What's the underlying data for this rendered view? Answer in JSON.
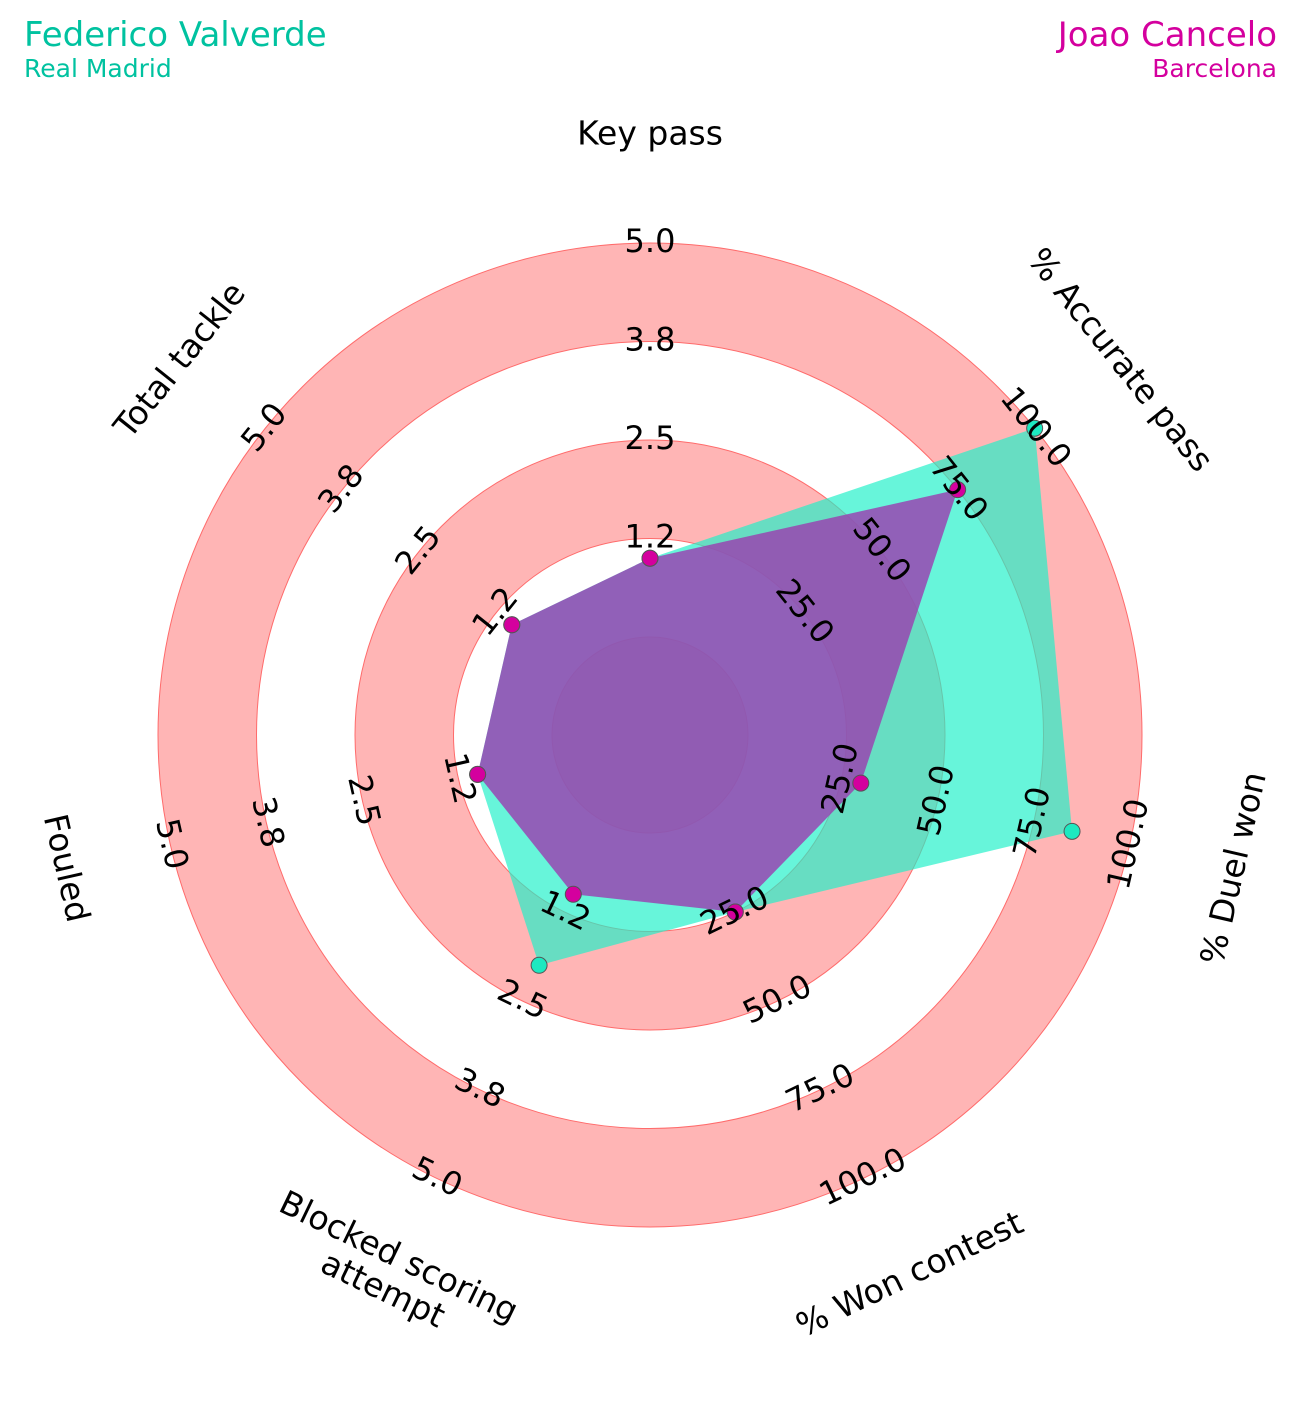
{
  "players": [
    {
      "name": "Federico Valverde",
      "team": "Real Madrid",
      "color": "#00c2a0",
      "fill": "#1ff0c8",
      "marker": "#1de9c0"
    },
    {
      "name": "Joao Cancelo",
      "team": "Barcelona",
      "color": "#d4009e",
      "fill": "#9b3fb0",
      "marker": "#d4009e"
    }
  ],
  "chart_data": {
    "type": "radar",
    "ring_color": "#ff6b6b",
    "axes": [
      {
        "label": "Key pass",
        "min": 0,
        "max": 5.0,
        "ticks": [
          "1.2",
          "2.5",
          "3.8",
          "5.0"
        ]
      },
      {
        "label": "% Accurate pass",
        "min": 0,
        "max": 100.0,
        "ticks": [
          "25.0",
          "50.0",
          "75.0",
          "100.0"
        ]
      },
      {
        "label": "% Duel won",
        "min": 0,
        "max": 100.0,
        "ticks": [
          "25.0",
          "50.0",
          "75.0",
          "100.0"
        ]
      },
      {
        "label": "% Won contest",
        "min": 0,
        "max": 100.0,
        "ticks": [
          "25.0",
          "50.0",
          "75.0",
          "100.0"
        ]
      },
      {
        "label": "Blocked scoring attempt",
        "min": 0,
        "max": 5.0,
        "ticks": [
          "1.2",
          "2.5",
          "3.8",
          "5.0"
        ]
      },
      {
        "label": "Fouled",
        "min": 0,
        "max": 5.0,
        "ticks": [
          "1.2",
          "2.5",
          "3.8",
          "5.0"
        ]
      },
      {
        "label": "Total tackle",
        "min": 0,
        "max": 5.0,
        "ticks": [
          "1.2",
          "2.5",
          "3.8",
          "5.0"
        ]
      }
    ],
    "series": [
      {
        "name": "Federico Valverde",
        "values": [
          1.0,
          100.0,
          85.0,
          25.0,
          2.0,
          1.0,
          1.0
        ]
      },
      {
        "name": "Joao Cancelo",
        "values": [
          1.0,
          75.0,
          30.0,
          25.0,
          1.0,
          1.0,
          1.0
        ]
      }
    ]
  }
}
